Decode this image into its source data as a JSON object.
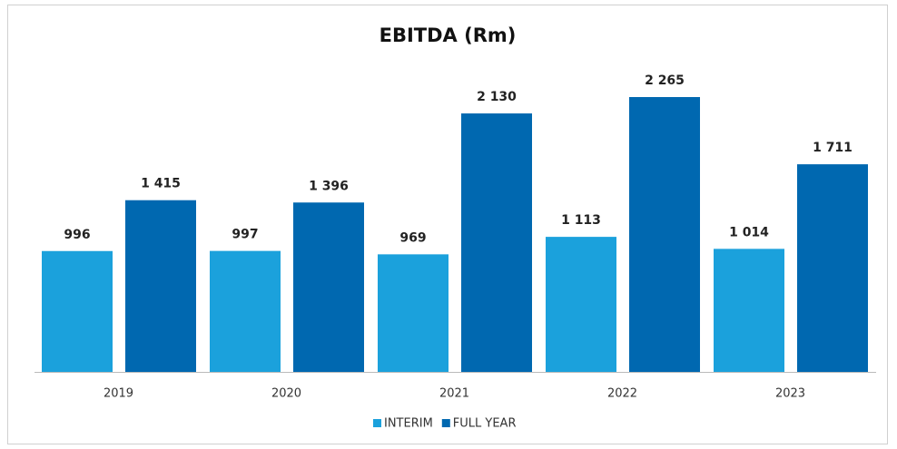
{
  "chart_data": {
    "type": "bar",
    "title": "EBITDA (Rm)",
    "categories": [
      "2019",
      "2020",
      "2021",
      "2022",
      "2023"
    ],
    "series": [
      {
        "name": "INTERIM",
        "color": "#1ba1dc",
        "values": [
          996,
          997,
          969,
          1113,
          1014
        ],
        "value_labels": [
          "996",
          "997",
          "969",
          "1 113",
          "1 014"
        ]
      },
      {
        "name": "FULL YEAR",
        "color": "#0068b0",
        "values": [
          1415,
          1396,
          2130,
          2265,
          1711
        ],
        "value_labels": [
          "1 415",
          "1 396",
          "2 130",
          "2 265",
          "1 711"
        ]
      }
    ],
    "legend": "bottom"
  }
}
